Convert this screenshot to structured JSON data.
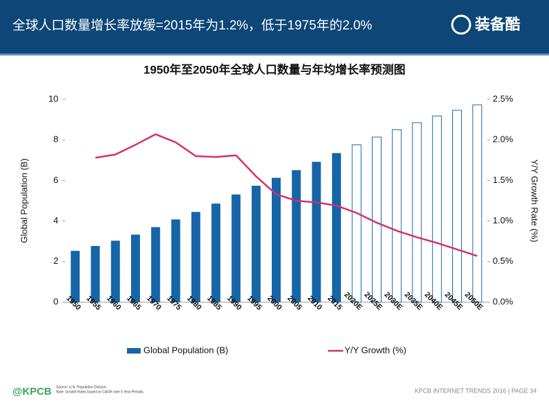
{
  "header": {
    "title": "全球人口数量增长率放缓=2015年为1.2%，低于1975年的2.0%",
    "logo": "装备酷"
  },
  "chart_data": {
    "type": "bar_line",
    "title": "1950年至2050年全球人口数量与年均增长率预测图",
    "categories": [
      "1950",
      "1955",
      "1960",
      "1965",
      "1970",
      "1975",
      "1980",
      "1985",
      "1990",
      "1995",
      "2000",
      "2005",
      "2010",
      "2015",
      "2020E",
      "2025E",
      "2030E",
      "2035E",
      "2040E",
      "2045E",
      "2050E"
    ],
    "series": [
      {
        "name": "Global Population (B)",
        "type": "bar",
        "color": "#1565a8",
        "axis": "y",
        "values": [
          2.53,
          2.77,
          3.03,
          3.33,
          3.7,
          4.08,
          4.45,
          4.86,
          5.31,
          5.74,
          6.13,
          6.51,
          6.92,
          7.35,
          7.76,
          8.14,
          8.5,
          8.85,
          9.18,
          9.46,
          9.73
        ]
      },
      {
        "name": "Y/Y Growth (%)",
        "type": "line",
        "color": "#d4306b",
        "axis": "y2",
        "values": [
          null,
          1.78,
          1.82,
          1.94,
          2.07,
          1.97,
          1.8,
          1.79,
          1.81,
          1.55,
          1.33,
          1.25,
          1.23,
          1.19,
          1.1,
          0.98,
          0.88,
          0.8,
          0.73,
          0.65,
          0.57
        ]
      }
    ],
    "ylabel": "Global Population (B)",
    "y2label": "Y/Y Growth Rate (%)",
    "ylim": [
      0,
      10
    ],
    "yticks": [
      0,
      2,
      4,
      6,
      8,
      10
    ],
    "y2lim": [
      0,
      2.5
    ],
    "y2ticks": [
      {
        "value": 0,
        "label": "0.0%"
      },
      {
        "value": 0.5,
        "label": "0.5%"
      },
      {
        "value": 1,
        "label": "1.0%"
      },
      {
        "value": 1.5,
        "label": "1.5%"
      },
      {
        "value": 2,
        "label": "2.0%"
      },
      {
        "value": 2.5,
        "label": "2.5%"
      }
    ],
    "legend": "bottom",
    "grid": false
  },
  "footer": {
    "brand": "@KPCB",
    "source": "Source: U.N. Population Division.",
    "note": "Note: Growth Rates based on CAGR over 5 Year Periods.",
    "page": "KPCB INTERNET TRENDS 2016  |  PAGE 34"
  }
}
